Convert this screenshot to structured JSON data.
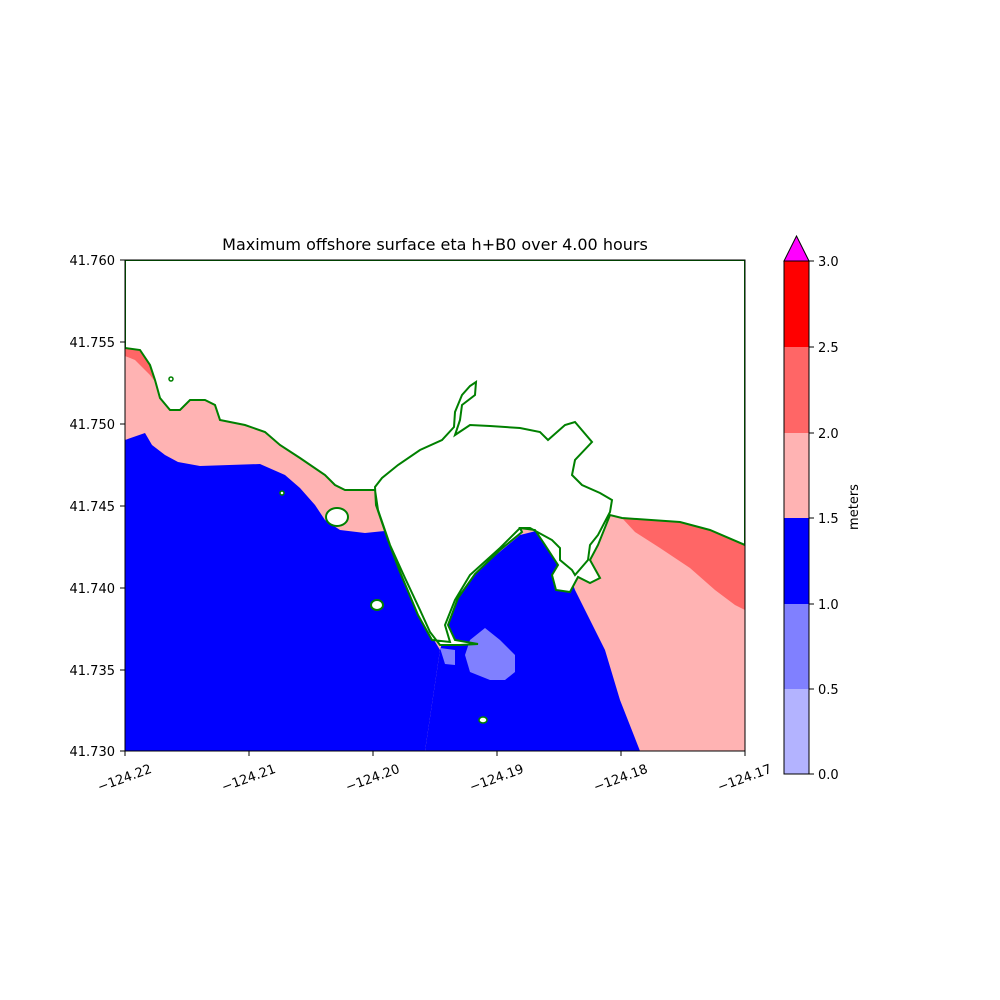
{
  "title": "Maximum offshore surface eta h+B0 over 4.00 hours",
  "x_ticks": [
    "−124.22",
    "−124.21",
    "−124.20",
    "−124.19",
    "−124.18",
    "−124.17"
  ],
  "y_ticks": [
    "41.760",
    "41.755",
    "41.750",
    "41.745",
    "41.740",
    "41.735",
    "41.730"
  ],
  "colorbar": {
    "label": "meters",
    "ticks": [
      "0.0",
      "0.5",
      "1.0",
      "1.5",
      "2.0",
      "2.5",
      "3.0"
    ],
    "levels": [
      0.0,
      0.5,
      1.0,
      1.5,
      2.0,
      2.5,
      3.0
    ],
    "colors": [
      "#b3b3ff",
      "#8080ff",
      "#0000ff",
      "#ffb3b3",
      "#ff6666",
      "#ff0000"
    ],
    "extend_over_color": "#ff00ff"
  },
  "chart_data": {
    "type": "heatmap",
    "title": "Maximum offshore surface eta h+B0 over 4.00 hours",
    "xlim": [
      -124.22,
      -124.17
    ],
    "ylim": [
      41.73,
      41.76
    ],
    "xlabel": "",
    "ylabel": "",
    "colorbar_label": "meters",
    "shoreline_color": "#008000",
    "land_color": "#ffffff"
  }
}
